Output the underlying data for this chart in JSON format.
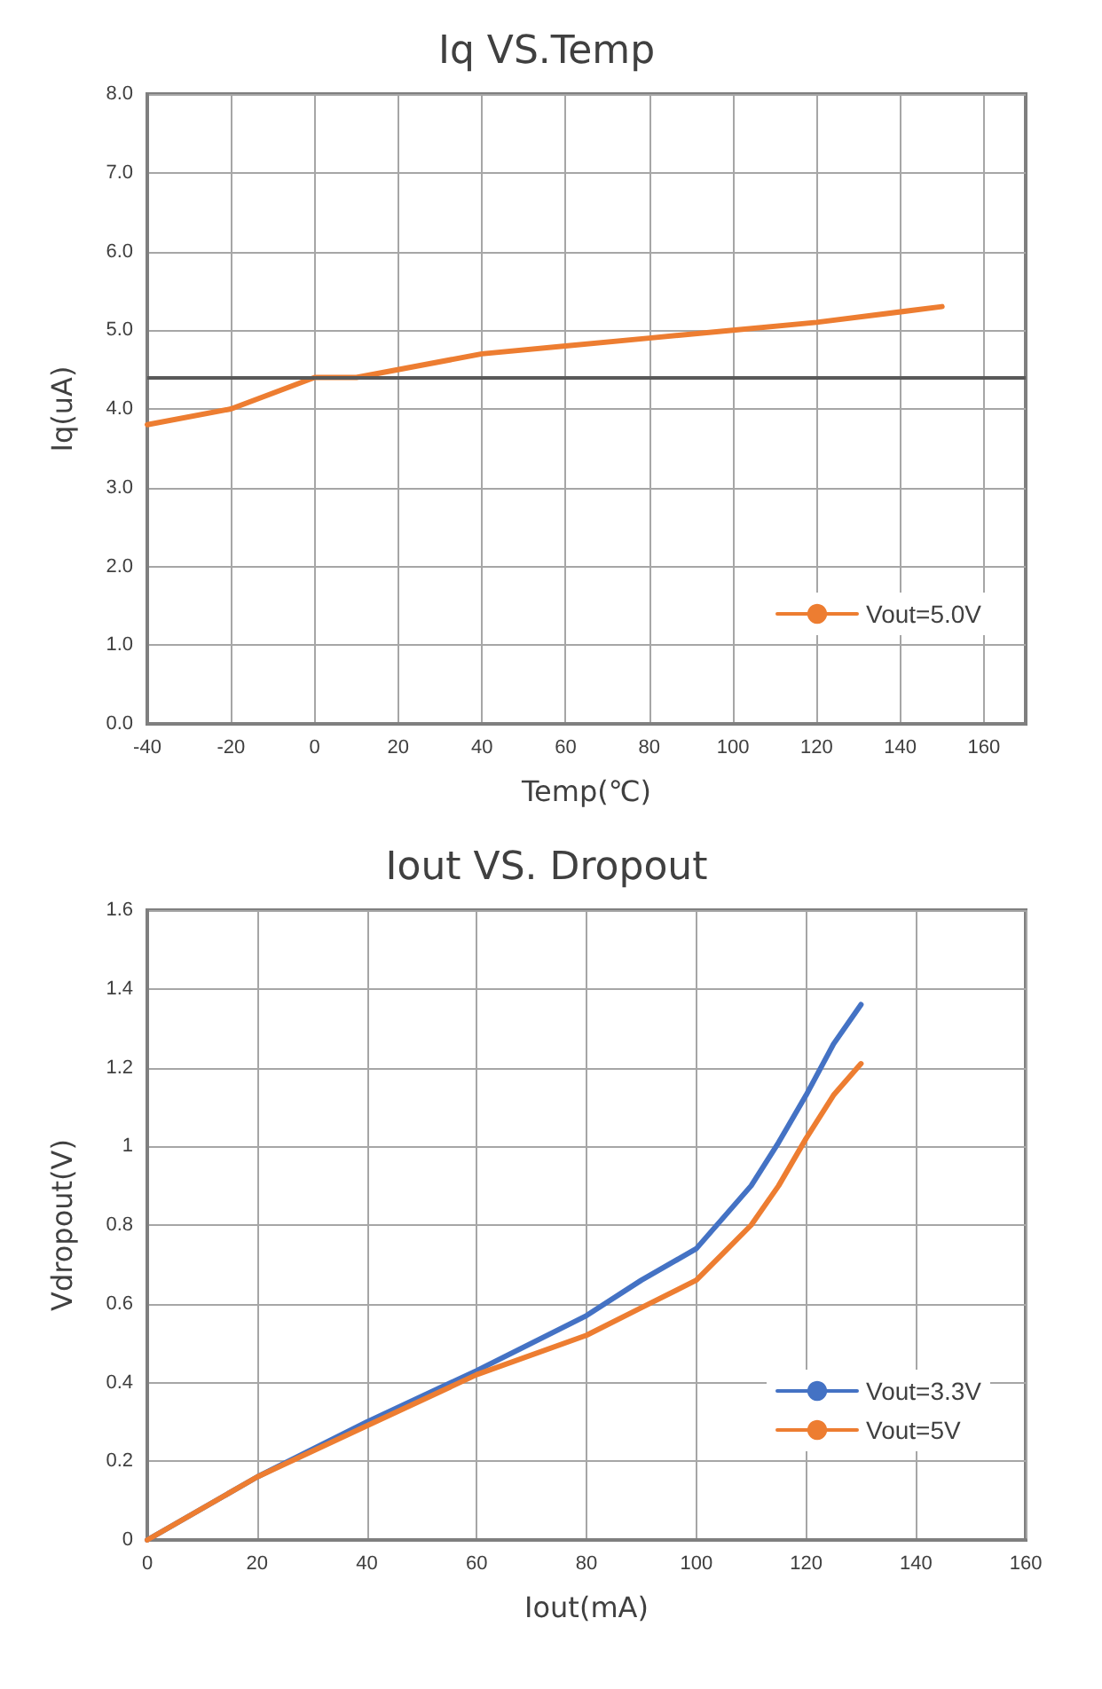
{
  "chart_data": [
    {
      "type": "line",
      "title": "Iq VS.Temp",
      "xlabel": "Temp(℃)",
      "ylabel": "Iq(uA)",
      "xlim": [
        -40,
        170
      ],
      "xticks": [
        -40,
        -20,
        0,
        20,
        40,
        60,
        80,
        100,
        120,
        140,
        160
      ],
      "ylim": [
        0,
        8
      ],
      "yticks": [
        {
          "value": 0,
          "label": "0.0"
        },
        {
          "value": 1,
          "label": "1.0"
        },
        {
          "value": 2,
          "label": "2.0"
        },
        {
          "value": 3,
          "label": "3.0"
        },
        {
          "value": 4,
          "label": "4.0"
        },
        {
          "value": 5,
          "label": "5.0"
        },
        {
          "value": 6,
          "label": "6.0"
        },
        {
          "value": 7,
          "label": "7.0"
        },
        {
          "value": 8,
          "label": "8.0"
        }
      ],
      "x": [
        -40,
        -20,
        0,
        10,
        40,
        60,
        80,
        100,
        120,
        150
      ],
      "series": [
        {
          "name": "Vout=5.0V",
          "color": "#ed7d31",
          "values": [
            3.8,
            4.0,
            4.4,
            4.4,
            4.7,
            4.8,
            4.9,
            5.0,
            5.1,
            5.3
          ]
        }
      ],
      "ref_lines": [
        {
          "axis": "y",
          "value": 4.4,
          "color": "#595959"
        }
      ],
      "grid": true,
      "legend": "bottom right",
      "marker": "none",
      "line_style": "solid"
    },
    {
      "type": "line",
      "title": "Iout VS. Dropout",
      "xlabel": "Iout(mA)",
      "ylabel": "Vdropout(V)",
      "xlim": [
        0,
        160
      ],
      "xticks": [
        0,
        20,
        40,
        60,
        80,
        100,
        120,
        140,
        160
      ],
      "ylim": [
        0,
        1.6
      ],
      "yticks": [
        0,
        0.2,
        0.4,
        0.6,
        0.8,
        1,
        1.2,
        1.4,
        1.6
      ],
      "x": [
        0,
        20,
        40,
        60,
        80,
        90,
        100,
        105,
        110,
        115,
        120,
        125,
        130
      ],
      "series": [
        {
          "name": "Vout=3.3V",
          "color": "#4472c4",
          "values": [
            0,
            0.16,
            0.3,
            0.43,
            0.57,
            0.66,
            0.74,
            0.82,
            0.9,
            1.01,
            1.13,
            1.26,
            1.36
          ]
        },
        {
          "name": "Vout=5V",
          "color": "#ed7d31",
          "values": [
            0,
            0.16,
            0.29,
            0.42,
            0.52,
            0.59,
            0.66,
            0.73,
            0.8,
            0.9,
            1.02,
            1.13,
            1.21
          ]
        }
      ],
      "grid": true,
      "legend": "bottom right",
      "marker": "none",
      "line_style": "solid"
    }
  ]
}
